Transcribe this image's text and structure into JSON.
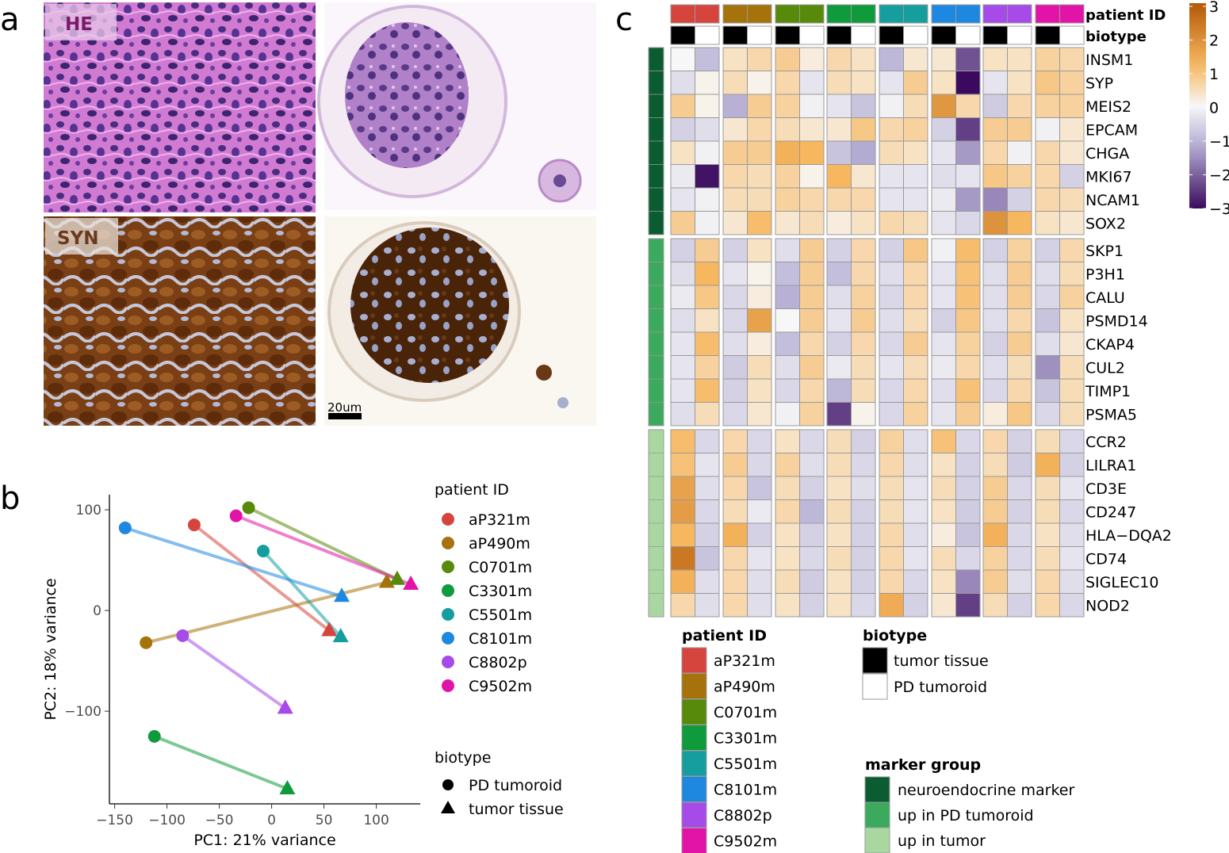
{
  "panel_labels": {
    "a": "a",
    "b": "b",
    "c": "c"
  },
  "panel_a": {
    "he_label": "HE",
    "syn_label": "SYN",
    "scale_bar": "20um",
    "colors": {
      "he_label_bg": "#e8c8e8",
      "he_label_text": "#7a1a6a",
      "syn_label_bg": "#e8e0d8",
      "syn_label_text": "#6a3a20"
    }
  },
  "legend_patients": [
    {
      "id": "aP321m",
      "color": "#d6453d"
    },
    {
      "id": "aP490m",
      "color": "#a5720b"
    },
    {
      "id": "C0701m",
      "color": "#578a0b"
    },
    {
      "id": "C3301m",
      "color": "#0f9a3c"
    },
    {
      "id": "C5501m",
      "color": "#169e9e"
    },
    {
      "id": "C8101m",
      "color": "#1e88e0"
    },
    {
      "id": "C8802p",
      "color": "#a64ae8"
    },
    {
      "id": "C9502m",
      "color": "#e214a8"
    }
  ],
  "pca": {
    "chart_data": {
      "type": "scatter",
      "title": "",
      "xlabel": "PC1: 21% variance",
      "ylabel": "PC2: 18% variance",
      "xlim": [
        -155,
        142
      ],
      "ylim": [
        -192,
        115
      ],
      "xticks": [
        -150,
        -100,
        -50,
        0,
        50,
        100
      ],
      "yticks": [
        -100,
        0,
        100
      ],
      "legend_title_patient": "patient ID",
      "legend_title_biotype": "biotype",
      "biotype_legend": [
        {
          "label": "PD tumoroid",
          "shape": "circle"
        },
        {
          "label": "tumor tissue",
          "shape": "triangle"
        }
      ],
      "points": [
        {
          "patient": "aP321m",
          "tumoroid": [
            -74,
            85
          ],
          "tissue": [
            55,
            -20
          ]
        },
        {
          "patient": "aP490m",
          "tumoroid": [
            -120,
            -32
          ],
          "tissue": [
            110,
            28
          ]
        },
        {
          "patient": "C0701m",
          "tumoroid": [
            -22,
            102
          ],
          "tissue": [
            120,
            31
          ]
        },
        {
          "patient": "C3301m",
          "tumoroid": [
            -112,
            -125
          ],
          "tissue": [
            15,
            -177
          ]
        },
        {
          "patient": "C5501m",
          "tumoroid": [
            -8,
            59
          ],
          "tissue": [
            66,
            -26
          ]
        },
        {
          "patient": "C8101m",
          "tumoroid": [
            -140,
            82
          ],
          "tissue": [
            67,
            14
          ]
        },
        {
          "patient": "C8802p",
          "tumoroid": [
            -85,
            -25
          ],
          "tissue": [
            13,
            -97
          ]
        },
        {
          "patient": "C9502m",
          "tumoroid": [
            -34,
            94
          ],
          "tissue": [
            133,
            26
          ]
        }
      ]
    }
  },
  "heatmap": {
    "chart_data": {
      "type": "heatmap",
      "color_scale": {
        "min": -3,
        "max": 3,
        "ticks": [
          "3",
          "2",
          "1",
          "0",
          "−1",
          "−2",
          "−3"
        ],
        "low": "#3b0a5e",
        "mid": "#f7f7f7",
        "high": "#b35806"
      },
      "annotation_labels": {
        "patient_id": "patient ID",
        "biotype": "biotype"
      },
      "column_order_note": "per patient: tumor tissue, PD tumoroid",
      "patients": [
        "aP321m",
        "aP490m",
        "C0701m",
        "C3301m",
        "C5501m",
        "C8101m",
        "C8802p",
        "C9502m"
      ],
      "groups": [
        {
          "name": "neuroendocrine marker",
          "color": "#0c5c32",
          "genes": [
            "INSM1",
            "SYP",
            "MEIS2",
            "EPCAM",
            "CHGA",
            "MKI67",
            "NCAM1",
            "SOX2"
          ],
          "values": [
            [
              0,
              -0.9,
              0.4,
              0.6,
              0.8,
              0.2,
              0.6,
              0.4,
              -1.0,
              0.3,
              0.3,
              -2.2,
              0.4,
              0.4,
              0.7,
              0.6
            ],
            [
              -0.4,
              0.1,
              0.5,
              0.1,
              0.6,
              -0.3,
              0.5,
              0.4,
              -0.3,
              0.8,
              0.4,
              -3.0,
              -0.3,
              0.4,
              0.9,
              0.7
            ],
            [
              0.8,
              0.1,
              -1.1,
              0.8,
              0.7,
              -0.1,
              -0.3,
              -0.8,
              -0.1,
              0.5,
              1.8,
              0.6,
              -0.7,
              0.6,
              0.7,
              0.7
            ],
            [
              -0.6,
              -0.4,
              0.3,
              0.6,
              0.5,
              0.3,
              0.3,
              0.9,
              0.6,
              0.7,
              -0.6,
              -2.4,
              0.8,
              0.8,
              -0.1,
              0.3
            ],
            [
              0.4,
              -0.1,
              0.8,
              0.8,
              1.3,
              1.2,
              -0.8,
              -1.2,
              0.5,
              0.4,
              -0.3,
              -1.4,
              0.6,
              -0.1,
              0.6,
              0.3
            ],
            [
              -0.2,
              -2.9,
              0.6,
              0.5,
              0.7,
              0.1,
              1.2,
              0.3,
              -0.3,
              -0.3,
              -0.4,
              -0.3,
              0.9,
              0.7,
              0.6,
              -0.6
            ],
            [
              -0.3,
              -0.1,
              0.5,
              0.5,
              0.7,
              0.6,
              0.6,
              0.6,
              -0.3,
              -0.3,
              -0.2,
              -1.4,
              -1.6,
              -0.6,
              0.6,
              0.5
            ],
            [
              0.8,
              -0.1,
              0.3,
              1.1,
              0.3,
              0.5,
              0.2,
              0.4,
              0.6,
              0.5,
              -0.3,
              -0.5,
              1.9,
              1.2,
              0.4,
              0.3
            ]
          ]
        },
        {
          "name": "up in PD tumoroid",
          "color": "#3caa5c",
          "genes": [
            "SKP1",
            "P3H1",
            "CALU",
            "PSMD14",
            "CKAP4",
            "CUL2",
            "TIMP1",
            "PSMA5"
          ],
          "values": [
            [
              -0.6,
              0.8,
              -0.6,
              0.4,
              -0.4,
              0.8,
              -0.6,
              0.6,
              -0.6,
              0.9,
              -0.1,
              1.1,
              -0.6,
              0.7,
              -0.6,
              0.6
            ],
            [
              -0.4,
              1.2,
              -0.3,
              0.1,
              -0.9,
              0.8,
              -0.9,
              0.6,
              -0.4,
              0.6,
              -0.3,
              1.0,
              -0.4,
              0.8,
              -0.4,
              0.5
            ],
            [
              -0.2,
              0.9,
              -0.5,
              0.2,
              -1.1,
              0.8,
              -0.4,
              0.7,
              -0.5,
              0.6,
              -0.3,
              1.0,
              -0.4,
              0.8,
              -0.5,
              0.7
            ],
            [
              -0.4,
              0.4,
              -0.5,
              1.6,
              0.0,
              0.8,
              -0.3,
              0.8,
              -0.4,
              0.5,
              -0.6,
              0.9,
              -0.4,
              0.6,
              -0.8,
              0.4
            ],
            [
              -0.3,
              1.1,
              -0.4,
              0.2,
              -0.9,
              0.6,
              -0.6,
              0.6,
              -0.5,
              0.8,
              -0.3,
              0.7,
              -0.6,
              0.8,
              -0.4,
              0.3
            ],
            [
              -0.3,
              0.7,
              -0.7,
              0.5,
              -0.4,
              0.8,
              -0.2,
              0.5,
              -0.3,
              0.5,
              -0.2,
              0.6,
              -0.4,
              0.5,
              -1.5,
              0.5
            ],
            [
              -0.3,
              1.1,
              -0.6,
              0.4,
              -0.5,
              0.6,
              -1.0,
              0.5,
              -0.5,
              0.6,
              -0.4,
              1.0,
              -0.5,
              0.6,
              -0.8,
              0.5
            ],
            [
              -0.4,
              0.5,
              -0.5,
              0.3,
              -0.1,
              0.7,
              -2.4,
              0.1,
              -0.5,
              0.7,
              -0.3,
              0.8,
              0.2,
              0.9,
              -0.5,
              0.5
            ]
          ]
        },
        {
          "name": "up in tumor",
          "color": "#a8d8a0",
          "genes": [
            "CCR2",
            "LILRA1",
            "CD3E",
            "CD247",
            "HLA−DQA2",
            "CD74",
            "SIGLEC10",
            "NOD2"
          ],
          "values": [
            [
              1.1,
              -0.5,
              0.6,
              -0.5,
              0.4,
              -0.5,
              0.5,
              -0.6,
              0.7,
              -0.4,
              1.0,
              -0.5,
              0.6,
              -0.6,
              0.5,
              -0.5
            ],
            [
              1.0,
              -0.3,
              0.8,
              -0.5,
              0.7,
              -0.4,
              0.5,
              -0.5,
              0.6,
              -0.4,
              0.4,
              -0.6,
              0.5,
              -0.7,
              1.3,
              -0.6
            ],
            [
              1.6,
              -0.4,
              0.6,
              -0.8,
              0.5,
              -0.6,
              0.4,
              -0.4,
              0.5,
              -0.3,
              0.5,
              -0.6,
              0.8,
              -0.5,
              0.5,
              -0.3
            ],
            [
              1.7,
              -0.5,
              0.5,
              -0.2,
              0.6,
              -1.0,
              0.5,
              -0.6,
              0.5,
              -0.3,
              0.4,
              -0.7,
              0.8,
              -0.6,
              0.5,
              -0.5
            ],
            [
              1.2,
              -0.6,
              1.3,
              -0.6,
              0.4,
              -0.6,
              0.4,
              -0.6,
              0.6,
              -0.4,
              0.2,
              -0.8,
              1.3,
              -0.5,
              0.4,
              -0.4
            ],
            [
              2.4,
              -0.8,
              0.6,
              -0.3,
              0.4,
              -0.5,
              0.5,
              -0.6,
              0.6,
              -0.3,
              0.5,
              -0.5,
              0.7,
              -0.5,
              0.5,
              -0.3
            ],
            [
              1.3,
              -0.4,
              0.6,
              -0.4,
              0.5,
              -0.7,
              0.4,
              -0.6,
              0.6,
              -0.5,
              0.4,
              -1.6,
              0.8,
              -0.4,
              0.6,
              -0.4
            ],
            [
              0.6,
              -0.4,
              0.6,
              -0.4,
              0.4,
              -0.6,
              0.4,
              -0.5,
              1.4,
              -0.6,
              0.3,
              -2.4,
              0.5,
              -0.6,
              0.6,
              -0.5
            ]
          ]
        }
      ]
    },
    "bottom_legend": {
      "patient_title": "patient ID",
      "biotype_title": "biotype",
      "biotype_items": [
        {
          "label": "tumor tissue",
          "color": "#000000"
        },
        {
          "label": "PD tumoroid",
          "color": "#ffffff"
        }
      ],
      "marker_title": "marker group",
      "marker_items": [
        {
          "label": "neuroendocrine marker",
          "color": "#0c5c32"
        },
        {
          "label": "up in PD tumoroid",
          "color": "#3caa5c"
        },
        {
          "label": "up in tumor",
          "color": "#a8d8a0"
        }
      ]
    }
  }
}
